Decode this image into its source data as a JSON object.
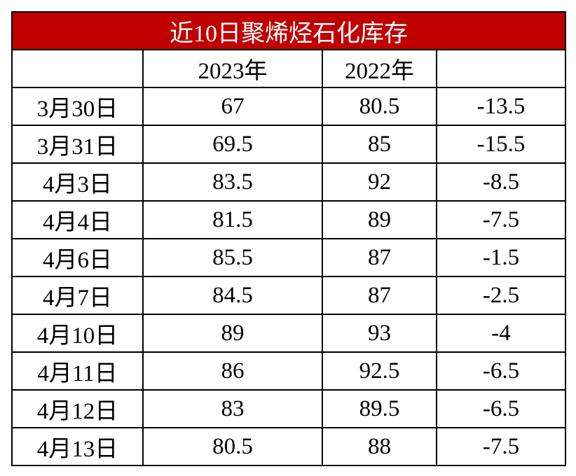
{
  "table": {
    "title": "近10日聚烯烃石化库存",
    "header": [
      "2023年",
      "2022年"
    ],
    "rows": [
      [
        "3月30日",
        "67",
        "80.5",
        "-13.5"
      ],
      [
        "3月31日",
        "69.5",
        "85",
        "-15.5"
      ],
      [
        "4月3日",
        "83.5",
        "92",
        "-8.5"
      ],
      [
        "4月4日",
        "81.5",
        "89",
        "-7.5"
      ],
      [
        "4月6日",
        "85.5",
        "87",
        "-1.5"
      ],
      [
        "4月7日",
        "84.5",
        "87",
        "-2.5"
      ],
      [
        "4月10日",
        "89",
        "93",
        "-4"
      ],
      [
        "4月11日",
        "86",
        "92.5",
        "-6.5"
      ],
      [
        "4月12日",
        "83",
        "89.5",
        "-6.5"
      ],
      [
        "4月13日",
        "80.5",
        "88",
        "-7.5"
      ]
    ]
  }
}
